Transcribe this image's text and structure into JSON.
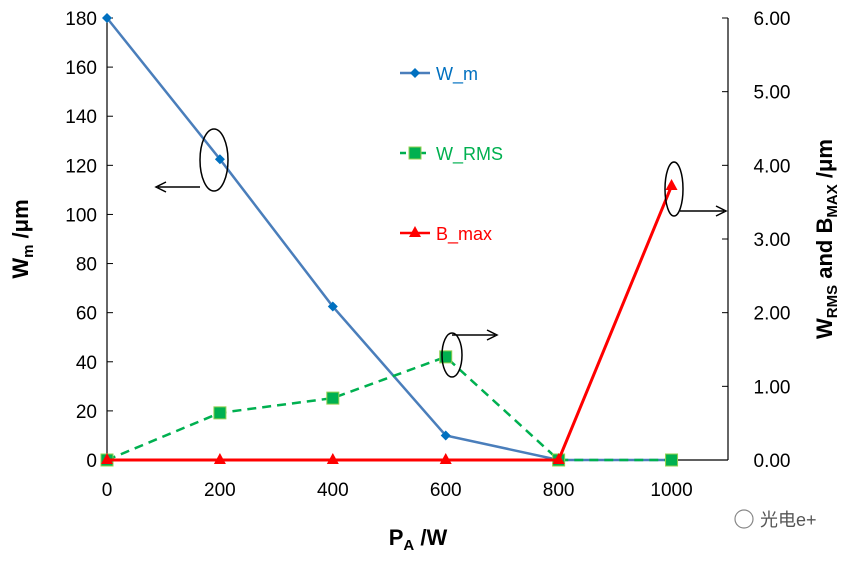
{
  "chart_data": {
    "type": "line",
    "x": [
      0,
      200,
      400,
      600,
      800,
      1000
    ],
    "xlim": [
      0,
      1100
    ],
    "xticks": [
      "0",
      "200",
      "400",
      "600",
      "800",
      "1000"
    ],
    "xlabel": {
      "main": "P",
      "sub": "A",
      "rest": " /W"
    },
    "ylim_left": [
      0,
      180
    ],
    "yticks_left": [
      "0",
      "20",
      "40",
      "60",
      "80",
      "100",
      "120",
      "140",
      "160",
      "180"
    ],
    "ylabel_left": {
      "main": "W",
      "sub": "m",
      "rest": " /μm"
    },
    "ylim_right": [
      0,
      6
    ],
    "yticks_right": [
      "0.00",
      "1.00",
      "2.00",
      "3.00",
      "4.00",
      "5.00",
      "6.00"
    ],
    "ylabel_right": {
      "p1": "W",
      "s1": "RMS",
      "p2": " and B",
      "s2": "MAX",
      "p3": " /μm"
    },
    "grid": false,
    "legend_position": "top-center",
    "series": [
      {
        "name": "W_m",
        "axis": "left",
        "color": "#4a7ebb",
        "marker_color": "#0070c0",
        "marker": "diamond",
        "dash": false,
        "values": [
          180,
          122.5,
          62.5,
          10,
          0,
          0
        ]
      },
      {
        "name": "W_RMS",
        "axis": "right",
        "color": "#00b050",
        "marker_color": "#00b050",
        "marker": "square",
        "dash": true,
        "values": [
          0,
          0.64,
          0.84,
          1.4,
          0,
          0
        ]
      },
      {
        "name": "B_max",
        "axis": "right",
        "color": "#ff0000",
        "marker_color": "#ff0000",
        "marker": "triangle",
        "dash": false,
        "values": [
          0,
          0,
          0,
          0,
          0,
          3.72
        ]
      }
    ],
    "legend_text_colors": [
      "#0070c0",
      "#00b050",
      "#ff0000"
    ]
  },
  "watermark": "光电e+"
}
